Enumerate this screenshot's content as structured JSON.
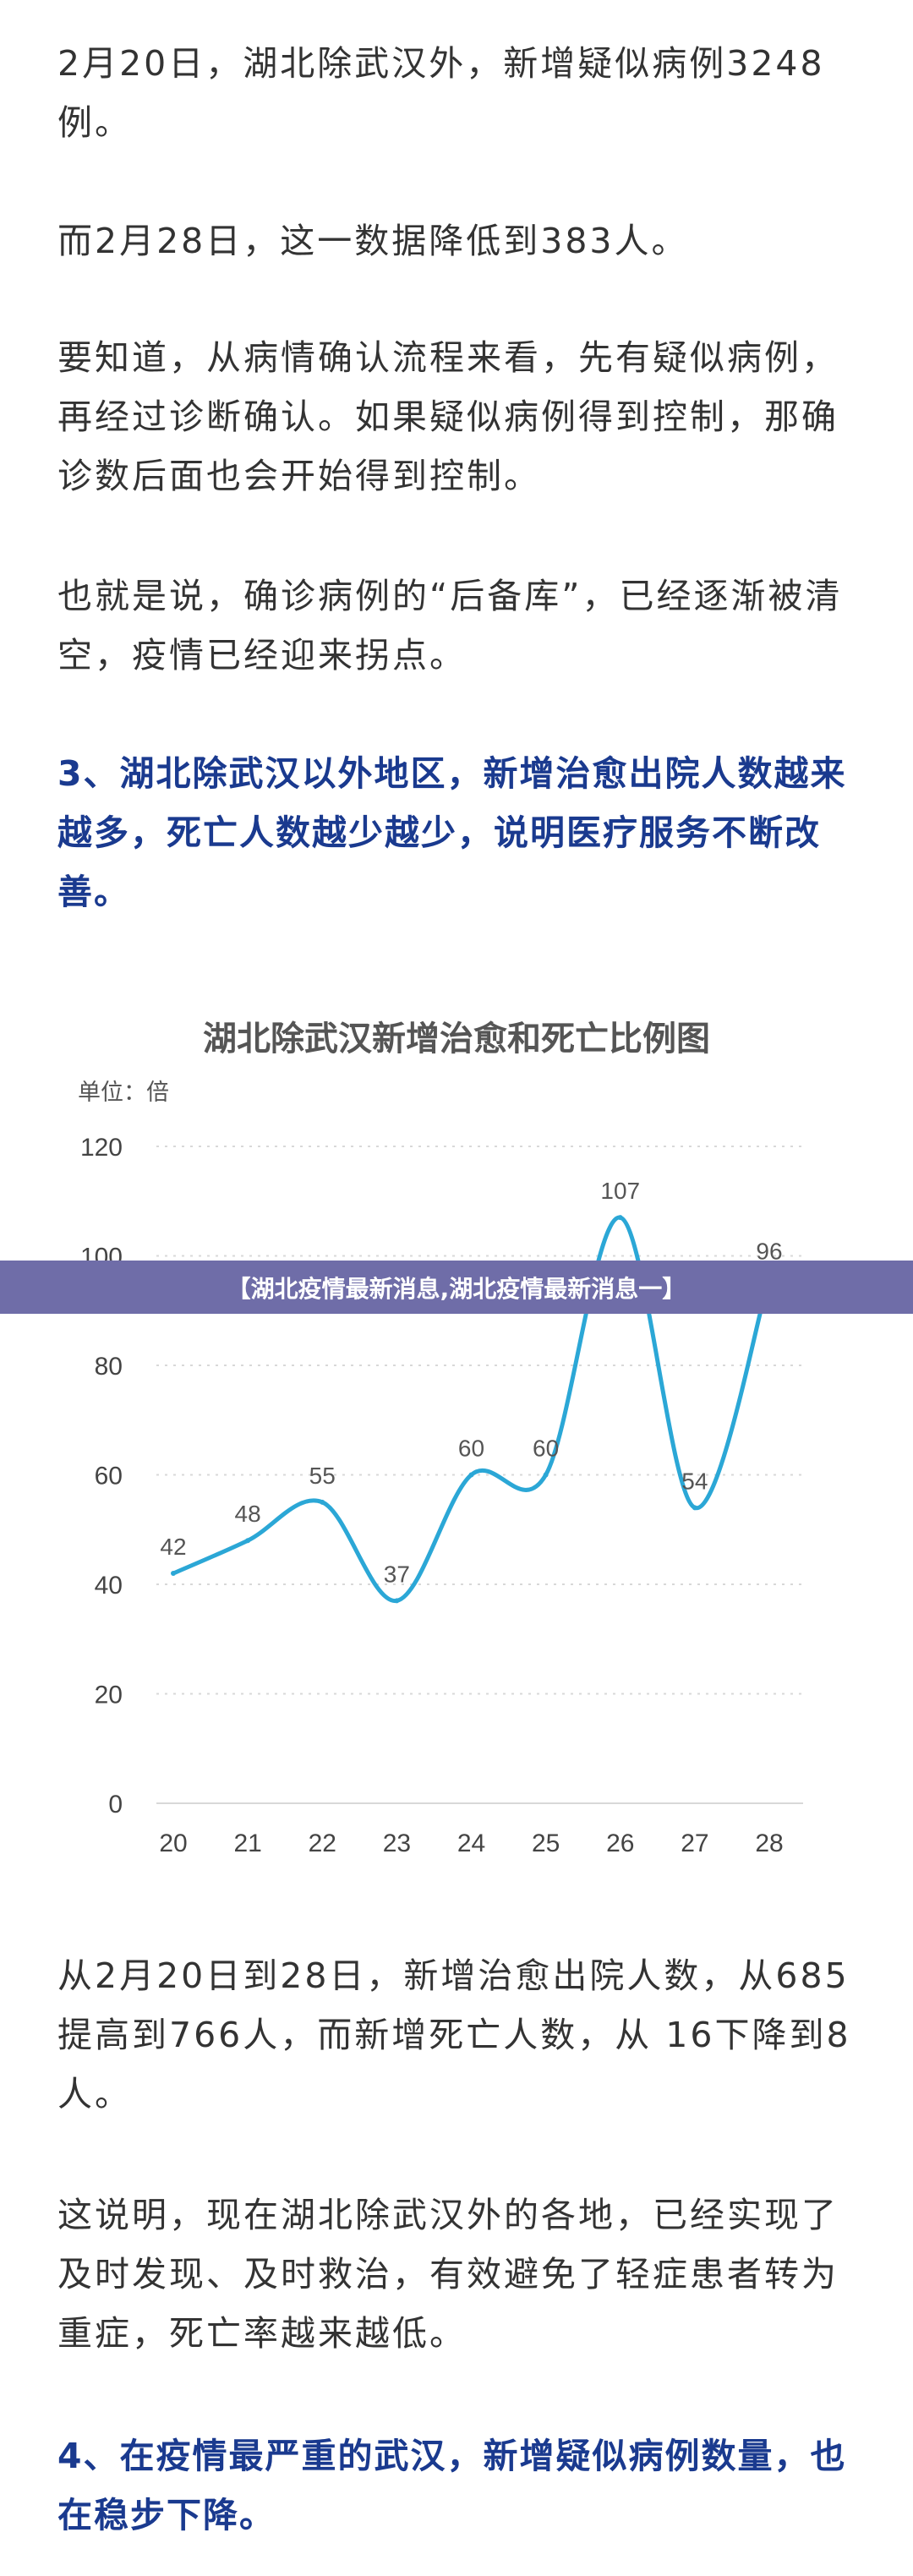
{
  "paragraphs": {
    "p1": "2月20日，湖北除武汉外，新增疑似病例3248例。",
    "p2": "而2月28日，这一数据降低到383人。",
    "p3": "要知道，从病情确认流程来看，先有疑似病例，再经过诊断确认。如果疑似病例得到控制，那确诊数后面也会开始得到控制。",
    "p4": "也就是说，确诊病例的“后备库”，已经逐渐被清空，疫情已经迎来拐点。",
    "h3": "3、湖北除武汉以外地区，新增治愈出院人数越来越多，死亡人数越少越少，说明医疗服务不断改善。",
    "p5": "从2月20日到28日，新增治愈出院人数，从685提高到766人，而新增死亡人数，从 16下降到8人。",
    "p6": "这说明，现在湖北除武汉外的各地，已经实现了及时发现、及时救治，有效避免了轻症患者转为重症，死亡率越来越低。",
    "h4": "4、在疫情最严重的武汉，新增疑似病例数量，也在稳步下降。"
  },
  "banner": {
    "text": "【湖北疫情最新消息,湖北疫情最新消息一】"
  },
  "colors": {
    "heading": "#1a3a8f",
    "line": "#2ba7d6",
    "banner_bg": "#6f6da8"
  },
  "chart_data": {
    "type": "line",
    "title": "湖北除武汉新增治愈和死亡比例图",
    "unit_label": "单位：倍",
    "x": [
      20,
      21,
      22,
      23,
      24,
      25,
      26,
      27,
      28
    ],
    "values": [
      42,
      48,
      55,
      37,
      60,
      60,
      107,
      54,
      96
    ],
    "ylim": [
      0,
      120
    ],
    "yticks": [
      0,
      20,
      40,
      60,
      80,
      100,
      120
    ],
    "grid": true,
    "smooth": true
  }
}
